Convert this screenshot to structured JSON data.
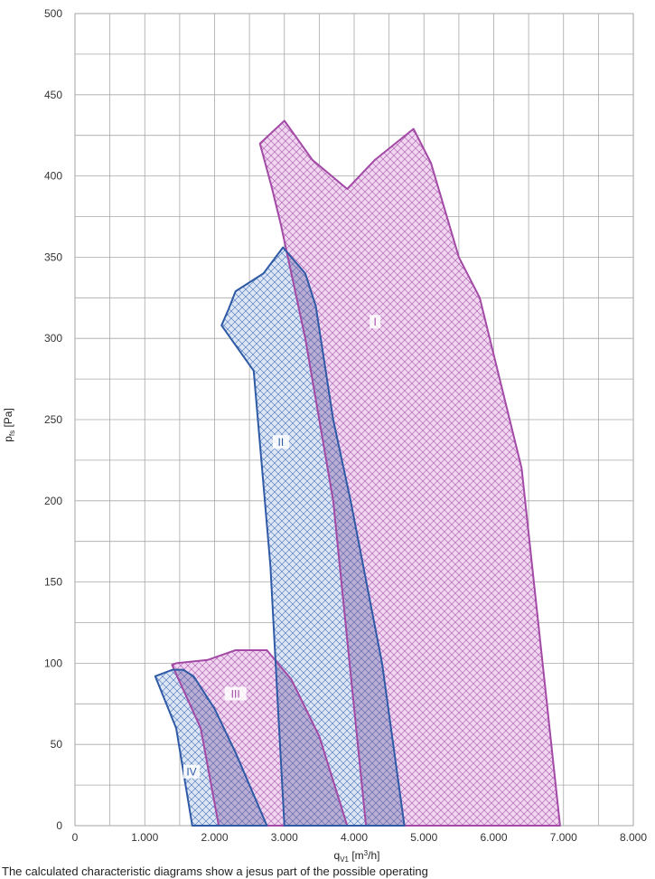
{
  "chart_data": {
    "type": "area",
    "xlabel": "q_V1 [m3/h]",
    "ylabel": "p_fs [Pa]",
    "xlim": [
      0,
      8000
    ],
    "ylim": [
      0,
      500
    ],
    "grid": true,
    "x_ticks": [
      "0",
      "1.000",
      "2.000",
      "3.000",
      "4.000",
      "5.000",
      "6.000",
      "7.000",
      "8.000"
    ],
    "y_ticks": [
      "0",
      "50",
      "100",
      "150",
      "200",
      "250",
      "300",
      "350",
      "400",
      "450",
      "500"
    ],
    "series": [
      {
        "name": "I",
        "color": "#a24aa6",
        "points": [
          [
            2650,
            420
          ],
          [
            3000,
            434
          ],
          [
            3400,
            410
          ],
          [
            3900,
            392
          ],
          [
            4300,
            410
          ],
          [
            4850,
            429
          ],
          [
            5100,
            408
          ],
          [
            5500,
            350
          ],
          [
            5800,
            325
          ],
          [
            6400,
            220
          ],
          [
            6950,
            0
          ],
          [
            4170,
            0
          ],
          [
            3700,
            200
          ],
          [
            3300,
            300
          ],
          [
            2950,
            370
          ],
          [
            2820,
            393
          ],
          [
            2650,
            420
          ]
        ],
        "label_pos": [
          4300,
          310
        ]
      },
      {
        "name": "II",
        "color": "#2f5aa6",
        "points": [
          [
            2100,
            308
          ],
          [
            2200,
            318
          ],
          [
            2300,
            329
          ],
          [
            2700,
            340
          ],
          [
            2980,
            356
          ],
          [
            3300,
            340
          ],
          [
            3450,
            320
          ],
          [
            3700,
            250
          ],
          [
            3950,
            200
          ],
          [
            4400,
            100
          ],
          [
            4720,
            0
          ],
          [
            3000,
            0
          ],
          [
            2900,
            80
          ],
          [
            2800,
            160
          ],
          [
            2560,
            280
          ],
          [
            2100,
            308
          ]
        ],
        "label_pos": [
          2950,
          236
        ]
      },
      {
        "name": "III",
        "color": "#a24aa6",
        "points": [
          [
            1390,
            99
          ],
          [
            1450,
            100
          ],
          [
            1900,
            102
          ],
          [
            2300,
            108
          ],
          [
            2750,
            108
          ],
          [
            3100,
            90
          ],
          [
            3500,
            55
          ],
          [
            3900,
            0
          ],
          [
            2060,
            0
          ],
          [
            1800,
            60
          ],
          [
            1390,
            99
          ]
        ],
        "label_pos": [
          2300,
          81
        ]
      },
      {
        "name": "IV",
        "color": "#2f5aa6",
        "points": [
          [
            1150,
            92
          ],
          [
            1400,
            96
          ],
          [
            1550,
            96
          ],
          [
            1700,
            92
          ],
          [
            2000,
            72
          ],
          [
            2300,
            45
          ],
          [
            2750,
            0
          ],
          [
            1680,
            0
          ],
          [
            1450,
            60
          ],
          [
            1150,
            92
          ]
        ],
        "label_pos": [
          1670,
          33
        ]
      }
    ]
  },
  "caption": "The calculated characteristic diagrams show a jesus part of the possible operating"
}
